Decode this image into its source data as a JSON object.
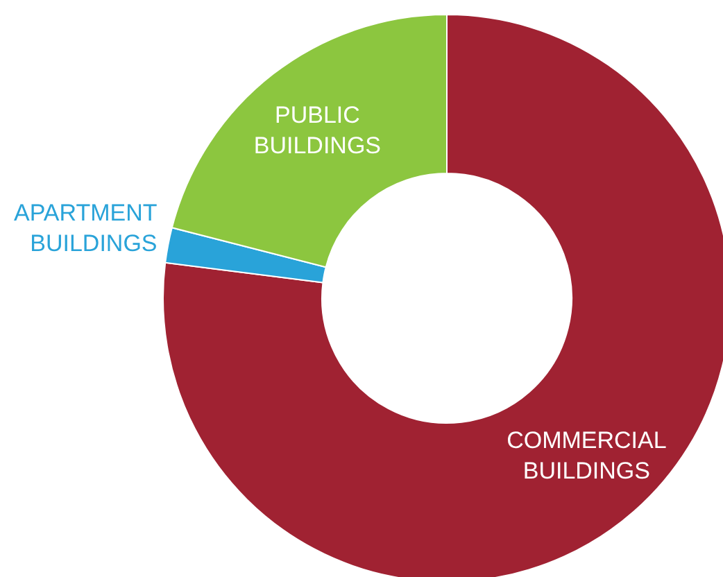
{
  "chart_data": {
    "type": "donut",
    "categories": [
      "COMMERCIAL BUILDINGS",
      "APARTMENT BUILDINGS",
      "PUBLIC BUILDINGS"
    ],
    "values": [
      77,
      2,
      21
    ],
    "colors": [
      "#a02232",
      "#29a3d9",
      "#8cc63f"
    ],
    "legend": false
  }
}
